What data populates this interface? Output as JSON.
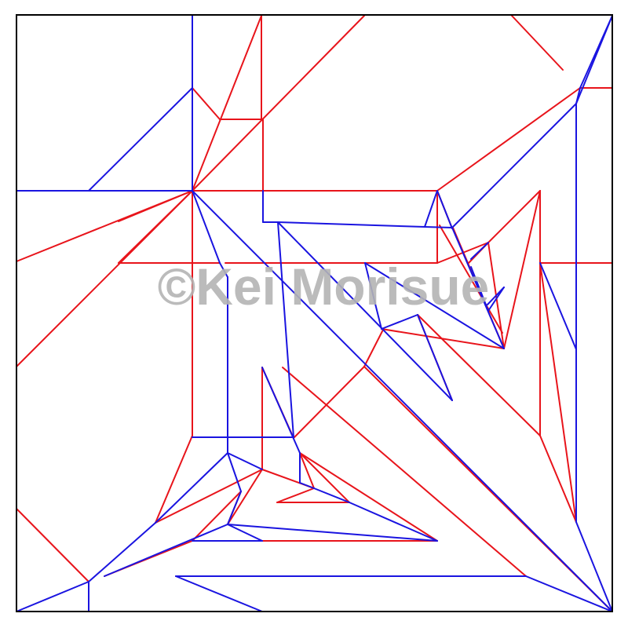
{
  "diagram": {
    "type": "crease-pattern",
    "colors": {
      "mountain": "#e8141b",
      "valley": "#1a14e0",
      "border": "#000000",
      "watermark": "#b4b4b4"
    }
  },
  "watermark": {
    "text": "©Kei Morisue"
  }
}
